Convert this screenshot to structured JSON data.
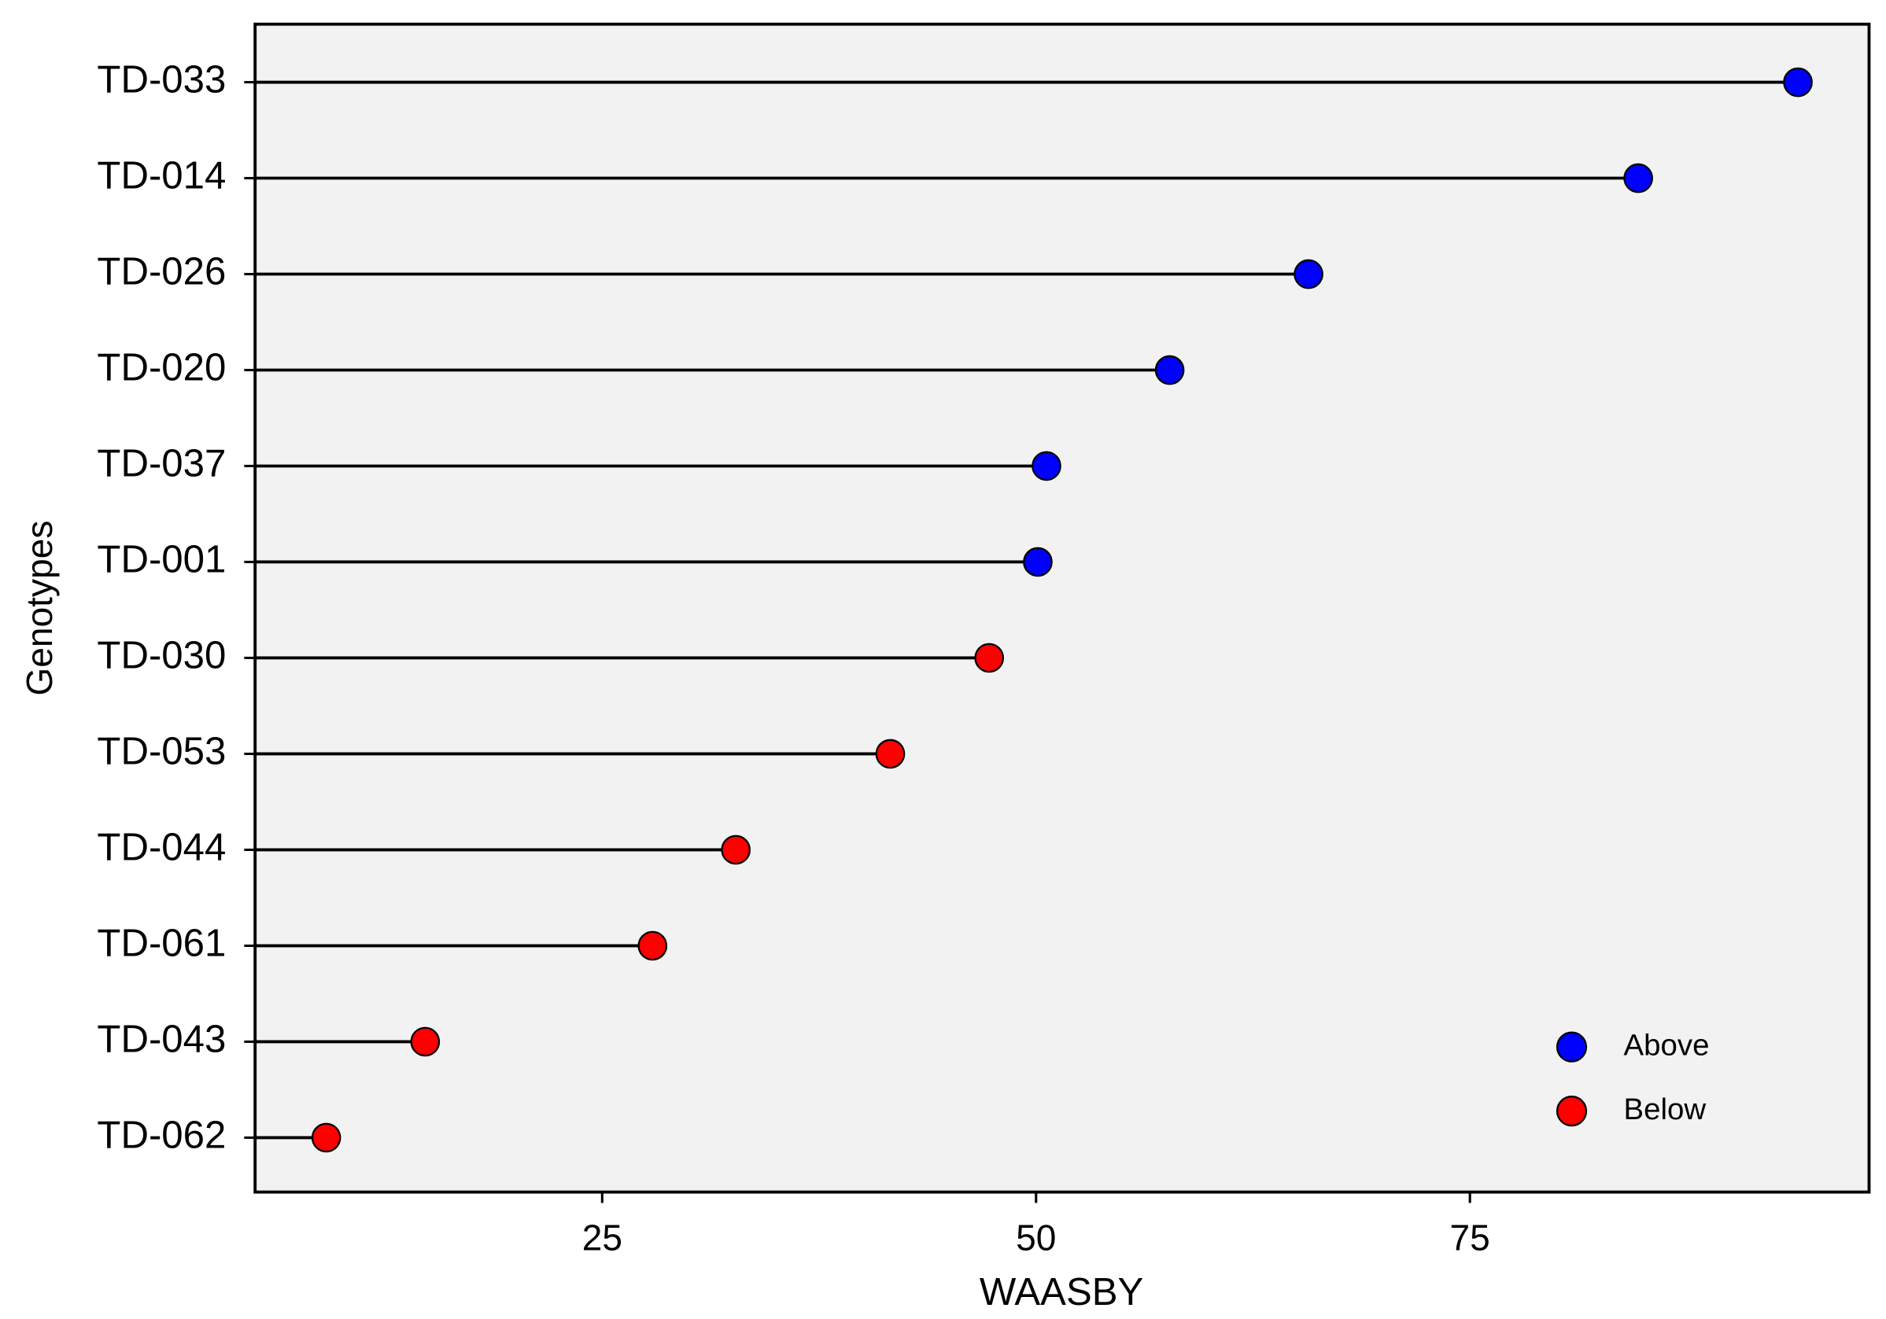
{
  "chart_data": {
    "type": "lollipop",
    "x_label": "WAASBY",
    "y_label": "Genotypes",
    "categories": [
      "TD-033",
      "TD-014",
      "TD-026",
      "TD-020",
      "TD-037",
      "TD-001",
      "TD-030",
      "TD-053",
      "TD-044",
      "TD-061",
      "TD-043",
      "TD-062"
    ],
    "series": [
      {
        "name": "Above",
        "color": "#0000ff",
        "values": [
          93.9,
          84.7,
          65.7,
          57.7,
          50.6,
          50.1,
          null,
          null,
          null,
          null,
          null,
          null
        ]
      },
      {
        "name": "Below",
        "color": "#ff0000",
        "values": [
          null,
          null,
          null,
          null,
          null,
          null,
          47.3,
          41.6,
          32.7,
          27.9,
          14.8,
          9.1
        ]
      }
    ],
    "xlim": [
      5,
      98
    ],
    "xticks": [
      25,
      50,
      75
    ],
    "legend": "bottom-right"
  }
}
